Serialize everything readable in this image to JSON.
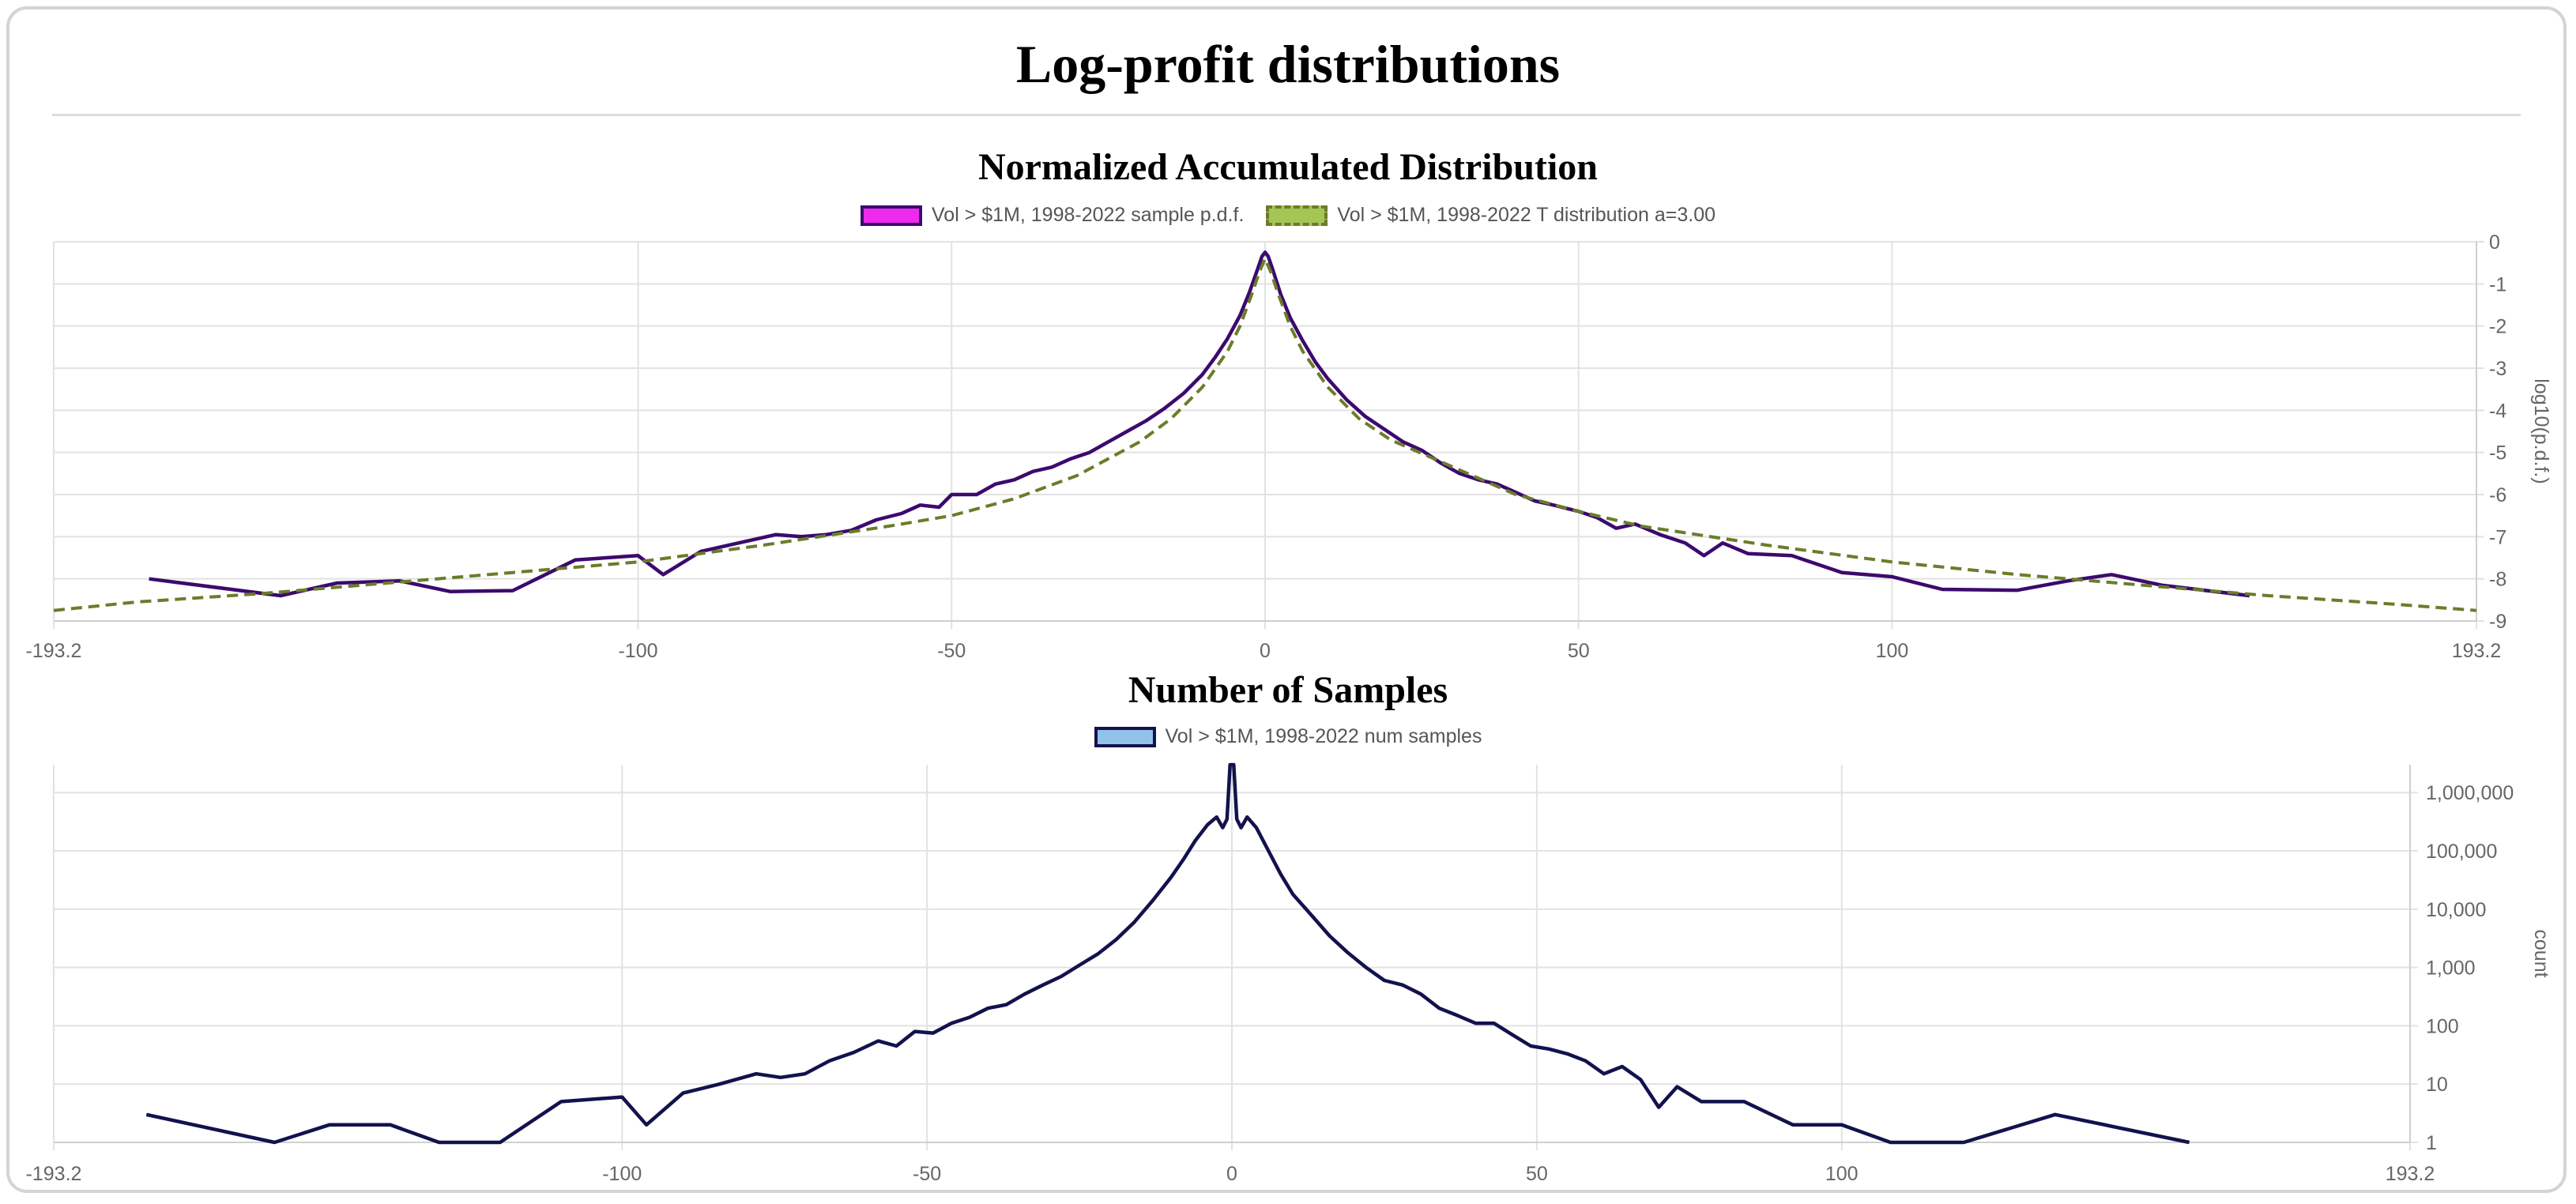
{
  "page": {
    "title": "Log-profit distributions"
  },
  "chart_data": [
    {
      "type": "line",
      "title": "Normalized Accumulated Distribution",
      "ylabel": "log10(p.d.f.)",
      "xlim": [
        -193.2,
        193.2
      ],
      "ylim": [
        -9,
        0
      ],
      "x_ticks": [
        "-193.2",
        "-100",
        "-50",
        "0",
        "50",
        "100",
        "193.2"
      ],
      "y_ticks": [
        "0",
        "-1",
        "-2",
        "-3",
        "-4",
        "-5",
        "-6",
        "-7",
        "-8",
        "-9"
      ],
      "grid": true,
      "legend_position": "top",
      "series": [
        {
          "name": "Vol > $1M, 1998-2022 sample p.d.f.",
          "color": "#3c0a6e",
          "legend_fill": "#ee2aee",
          "legend_border": "#3c0a6e",
          "dashed": false,
          "points": [
            [
              -178,
              -8.0
            ],
            [
              -157,
              -8.4
            ],
            [
              -148,
              -8.1
            ],
            [
              -138,
              -8.05
            ],
            [
              -130,
              -8.3
            ],
            [
              -120,
              -8.28
            ],
            [
              -110,
              -7.55
            ],
            [
              -100,
              -7.45
            ],
            [
              -96,
              -7.9
            ],
            [
              -90,
              -7.35
            ],
            [
              -84,
              -7.15
            ],
            [
              -78,
              -6.95
            ],
            [
              -74,
              -7.0
            ],
            [
              -70,
              -6.95
            ],
            [
              -66,
              -6.85
            ],
            [
              -62,
              -6.6
            ],
            [
              -58,
              -6.45
            ],
            [
              -55,
              -6.25
            ],
            [
              -52,
              -6.3
            ],
            [
              -50,
              -6.0
            ],
            [
              -46,
              -6.0
            ],
            [
              -43,
              -5.75
            ],
            [
              -40,
              -5.65
            ],
            [
              -37,
              -5.45
            ],
            [
              -34,
              -5.35
            ],
            [
              -31,
              -5.15
            ],
            [
              -28,
              -5.0
            ],
            [
              -25,
              -4.75
            ],
            [
              -22,
              -4.5
            ],
            [
              -19,
              -4.25
            ],
            [
              -16,
              -3.95
            ],
            [
              -13,
              -3.6
            ],
            [
              -10,
              -3.15
            ],
            [
              -8,
              -2.75
            ],
            [
              -6,
              -2.3
            ],
            [
              -4,
              -1.75
            ],
            [
              -2.5,
              -1.2
            ],
            [
              -1.2,
              -0.65
            ],
            [
              -0.5,
              -0.35
            ],
            [
              0,
              -0.25
            ],
            [
              0.5,
              -0.35
            ],
            [
              1.2,
              -0.65
            ],
            [
              2.5,
              -1.25
            ],
            [
              4,
              -1.8
            ],
            [
              6,
              -2.35
            ],
            [
              8,
              -2.85
            ],
            [
              10,
              -3.25
            ],
            [
              13,
              -3.75
            ],
            [
              16,
              -4.15
            ],
            [
              19,
              -4.45
            ],
            [
              22,
              -4.75
            ],
            [
              25,
              -4.95
            ],
            [
              28,
              -5.25
            ],
            [
              31,
              -5.5
            ],
            [
              34,
              -5.65
            ],
            [
              37,
              -5.75
            ],
            [
              40,
              -5.95
            ],
            [
              43,
              -6.15
            ],
            [
              46,
              -6.25
            ],
            [
              50,
              -6.4
            ],
            [
              53,
              -6.55
            ],
            [
              56,
              -6.8
            ],
            [
              59,
              -6.7
            ],
            [
              63,
              -6.95
            ],
            [
              67,
              -7.15
            ],
            [
              70,
              -7.45
            ],
            [
              73,
              -7.15
            ],
            [
              77,
              -7.4
            ],
            [
              84,
              -7.45
            ],
            [
              92,
              -7.85
            ],
            [
              100,
              -7.95
            ],
            [
              108,
              -8.25
            ],
            [
              120,
              -8.27
            ],
            [
              128,
              -8.05
            ],
            [
              135,
              -7.9
            ],
            [
              143,
              -8.15
            ],
            [
              157,
              -8.4
            ]
          ]
        },
        {
          "name": "Vol > $1M, 1998-2022 T distribution a=3.00",
          "color": "#6b7c2a",
          "legend_fill": "#a4c654",
          "legend_border": "#6b7c2a",
          "dashed": true,
          "points": [
            [
              -193.2,
              -8.75
            ],
            [
              -180,
              -8.55
            ],
            [
              -160,
              -8.35
            ],
            [
              -140,
              -8.1
            ],
            [
              -120,
              -7.85
            ],
            [
              -100,
              -7.6
            ],
            [
              -80,
              -7.2
            ],
            [
              -60,
              -6.75
            ],
            [
              -50,
              -6.5
            ],
            [
              -40,
              -6.1
            ],
            [
              -30,
              -5.55
            ],
            [
              -20,
              -4.75
            ],
            [
              -15,
              -4.2
            ],
            [
              -10,
              -3.45
            ],
            [
              -6,
              -2.6
            ],
            [
              -4,
              -2.0
            ],
            [
              -2,
              -1.2
            ],
            [
              -1,
              -0.75
            ],
            [
              0,
              -0.4
            ],
            [
              1,
              -0.75
            ],
            [
              2,
              -1.2
            ],
            [
              4,
              -2.0
            ],
            [
              6,
              -2.6
            ],
            [
              10,
              -3.45
            ],
            [
              15,
              -4.2
            ],
            [
              20,
              -4.7
            ],
            [
              30,
              -5.35
            ],
            [
              40,
              -6.0
            ],
            [
              50,
              -6.4
            ],
            [
              60,
              -6.75
            ],
            [
              80,
              -7.2
            ],
            [
              100,
              -7.6
            ],
            [
              120,
              -7.9
            ],
            [
              140,
              -8.15
            ],
            [
              160,
              -8.4
            ],
            [
              180,
              -8.6
            ],
            [
              193.2,
              -8.75
            ]
          ]
        }
      ]
    },
    {
      "type": "line",
      "title": "Number of Samples",
      "ylabel": "count",
      "yscale": "log",
      "xlim": [
        -193.2,
        193.2
      ],
      "ylim": [
        1,
        3000000
      ],
      "x_ticks": [
        "-193.2",
        "-100",
        "-50",
        "0",
        "50",
        "100",
        "193.2"
      ],
      "y_ticks": [
        "1,000,000",
        "100,000",
        "10,000",
        "1,000",
        "100",
        "10",
        "1"
      ],
      "grid": true,
      "legend_position": "top",
      "series": [
        {
          "name": "Vol > $1M, 1998-2022 num samples",
          "color": "#12124e",
          "legend_fill": "#92c2ea",
          "legend_border": "#12124e",
          "dashed": false,
          "points": [
            [
              -178,
              3
            ],
            [
              -157,
              1
            ],
            [
              -148,
              2
            ],
            [
              -138,
              2
            ],
            [
              -130,
              1
            ],
            [
              -120,
              1
            ],
            [
              -110,
              5
            ],
            [
              -100,
              6
            ],
            [
              -96,
              2
            ],
            [
              -90,
              7
            ],
            [
              -84,
              10
            ],
            [
              -78,
              15
            ],
            [
              -74,
              13
            ],
            [
              -70,
              15
            ],
            [
              -66,
              25
            ],
            [
              -62,
              35
            ],
            [
              -58,
              55
            ],
            [
              -55,
              45
            ],
            [
              -52,
              80
            ],
            [
              -49,
              75
            ],
            [
              -46,
              110
            ],
            [
              -43,
              140
            ],
            [
              -40,
              200
            ],
            [
              -37,
              230
            ],
            [
              -34,
              350
            ],
            [
              -31,
              500
            ],
            [
              -28,
              700
            ],
            [
              -25,
              1100
            ],
            [
              -22,
              1700
            ],
            [
              -19,
              3000
            ],
            [
              -16,
              6000
            ],
            [
              -13,
              14000
            ],
            [
              -10,
              35000
            ],
            [
              -8,
              70000
            ],
            [
              -6,
              150000
            ],
            [
              -4,
              280000
            ],
            [
              -2.5,
              380000
            ],
            [
              -1.5,
              250000
            ],
            [
              -0.8,
              350000
            ],
            [
              -0.3,
              3000000
            ],
            [
              0,
              3000000
            ],
            [
              0.3,
              3000000
            ],
            [
              0.8,
              350000
            ],
            [
              1.5,
              250000
            ],
            [
              2.5,
              380000
            ],
            [
              4,
              250000
            ],
            [
              6,
              100000
            ],
            [
              8,
              40000
            ],
            [
              10,
              18000
            ],
            [
              13,
              8000
            ],
            [
              16,
              3500
            ],
            [
              19,
              1800
            ],
            [
              22,
              1000
            ],
            [
              25,
              600
            ],
            [
              28,
              500
            ],
            [
              31,
              350
            ],
            [
              34,
              200
            ],
            [
              37,
              150
            ],
            [
              40,
              110
            ],
            [
              43,
              110
            ],
            [
              46,
              70
            ],
            [
              49,
              45
            ],
            [
              52,
              40
            ],
            [
              55,
              33
            ],
            [
              58,
              25
            ],
            [
              61,
              15
            ],
            [
              64,
              20
            ],
            [
              67,
              12
            ],
            [
              70,
              4
            ],
            [
              73,
              9
            ],
            [
              77,
              5
            ],
            [
              84,
              5
            ],
            [
              92,
              2
            ],
            [
              100,
              2
            ],
            [
              108,
              1
            ],
            [
              120,
              1
            ],
            [
              135,
              3
            ],
            [
              157,
              1
            ]
          ]
        }
      ]
    }
  ]
}
